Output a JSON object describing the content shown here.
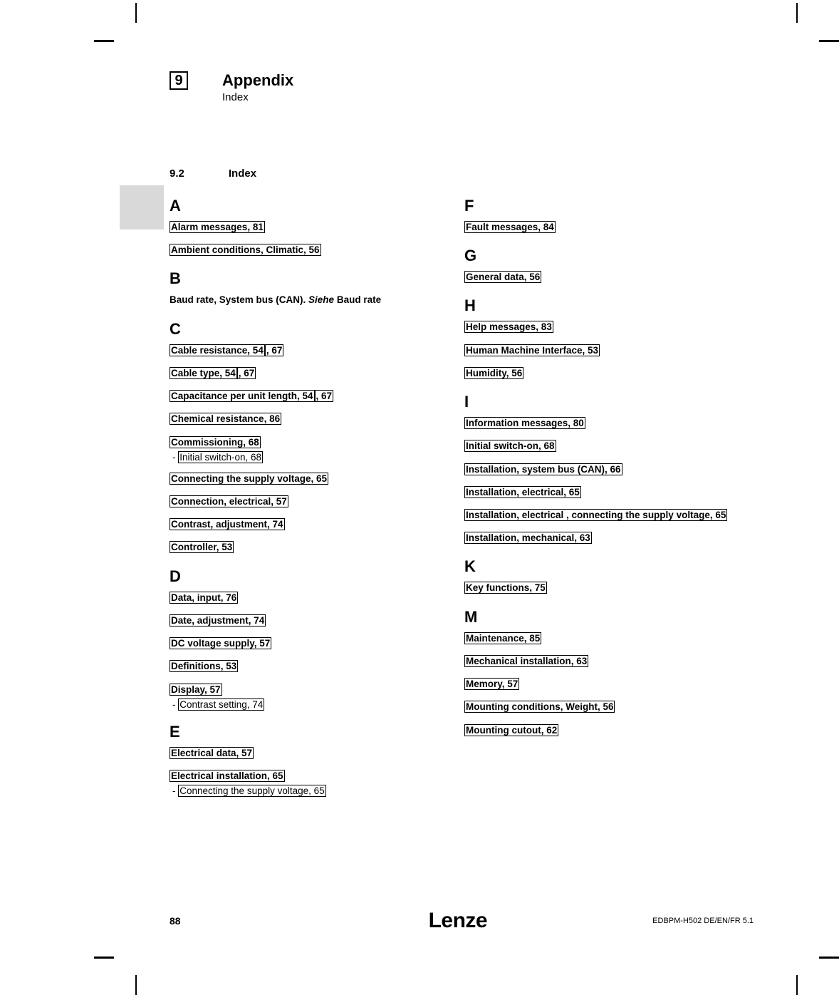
{
  "header": {
    "chapter_number": "9",
    "title": "Appendix",
    "subtitle": "Index"
  },
  "section": {
    "number": "9.2",
    "title": "Index"
  },
  "index_left": [
    {
      "letter": "A",
      "entries": [
        {
          "text": "Alarm messages,  81",
          "link": true
        },
        {
          "text": "Ambient conditions, Climatic,  56",
          "link": true
        }
      ]
    },
    {
      "letter": "B",
      "entries": [
        {
          "prefix": "Baud rate, System bus (CAN). ",
          "em": "Siehe",
          "suffix": " Baud rate",
          "link": false
        }
      ]
    },
    {
      "letter": "C",
      "entries": [
        {
          "text": "Cable resistance,  54",
          "extra_pg": ",  67",
          "link": true
        },
        {
          "text": "Cable type,  54",
          "extra_pg": ",  67",
          "link": true
        },
        {
          "text": "Capacitance per unit length,  54",
          "extra_pg": ",  67",
          "link": true
        },
        {
          "text": "Chemical resistance,  86",
          "link": true
        },
        {
          "text": "Commissioning,  68",
          "link": true,
          "sub": {
            "text": "Initial switch-on,  68",
            "link": true
          }
        },
        {
          "text": "Connecting the supply voltage,  65",
          "link": true
        },
        {
          "text": "Connection, electrical,  57",
          "link": true
        },
        {
          "text": "Contrast, adjustment,  74",
          "link": true
        },
        {
          "text": "Controller,  53",
          "link": true
        }
      ]
    },
    {
      "letter": "D",
      "entries": [
        {
          "text": "Data, input,  76",
          "link": true
        },
        {
          "text": "Date, adjustment,  74",
          "link": true
        },
        {
          "text": "DC voltage supply,  57",
          "link": true
        },
        {
          "text": "Definitions,  53",
          "link": true
        },
        {
          "text": "Display,  57",
          "link": true,
          "sub": {
            "text": "Contrast setting,  74",
            "link": true
          }
        }
      ]
    },
    {
      "letter": "E",
      "entries": [
        {
          "text": "Electrical data,  57",
          "link": true
        },
        {
          "text": "Electrical installation,  65",
          "link": true,
          "sub": {
            "text": "Connecting the supply voltage,  65",
            "link": true
          }
        }
      ]
    }
  ],
  "index_right": [
    {
      "letter": "F",
      "entries": [
        {
          "text": "Fault messages,  84",
          "link": true
        }
      ]
    },
    {
      "letter": "G",
      "entries": [
        {
          "text": "General data,  56",
          "link": true
        }
      ]
    },
    {
      "letter": "H",
      "entries": [
        {
          "text": "Help messages,  83",
          "link": true
        },
        {
          "text": "Human Machine Interface,  53",
          "link": true
        },
        {
          "text": "Humidity,  56",
          "link": true
        }
      ]
    },
    {
      "letter": "I",
      "entries": [
        {
          "text": "Information messages,  80",
          "link": true
        },
        {
          "text": "Initial switch-on,  68",
          "link": true
        },
        {
          "text": "Installation, system bus (CAN),  66",
          "link": true
        },
        {
          "text": "Installation, electrical,  65",
          "link": true
        },
        {
          "text": "Installation, electrical , connecting the supply voltage,  65",
          "link": true
        },
        {
          "text": "Installation, mechanical,  63",
          "link": true
        }
      ]
    },
    {
      "letter": "K",
      "entries": [
        {
          "text": "Key functions,  75",
          "link": true
        }
      ]
    },
    {
      "letter": "M",
      "entries": [
        {
          "text": "Maintenance,  85",
          "link": true
        },
        {
          "text": "Mechanical installation,  63",
          "link": true
        },
        {
          "text": "Memory,  57",
          "link": true
        },
        {
          "text": "Mounting conditions, Weight,  56",
          "link": true
        },
        {
          "text": "Mounting cutout,  62",
          "link": true
        }
      ]
    }
  ],
  "footer": {
    "page": "88",
    "brand": "Lenze",
    "docid": "EDBPM-H502  DE/EN/FR  5.1"
  },
  "dash": "- "
}
